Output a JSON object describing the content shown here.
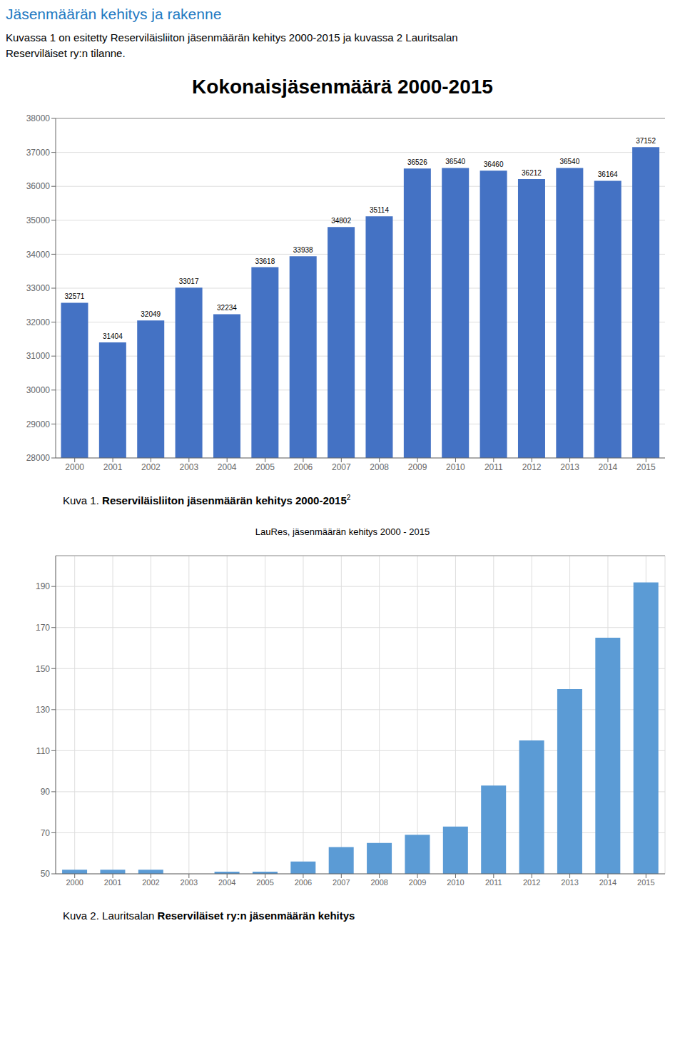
{
  "page": {
    "title": "Jäsenmäärän kehitys ja rakenne",
    "color": "#1F7AC2",
    "text": [
      "Kuvassa 1 on esitetty Reserviläisliiton jäsenmäärän kehitys 2000-2015 ja kuvassa 2 Lauritsalan",
      "Reserviläiset ry:n tilanne."
    ]
  },
  "chart_data": [
    {
      "type": "bar",
      "title": "Kokonaisjäsenmäärä 2000-2015",
      "categories": [
        "2000",
        "2001",
        "2002",
        "2003",
        "2004",
        "2005",
        "2006",
        "2007",
        "2008",
        "2009",
        "2010",
        "2011",
        "2012",
        "2013",
        "2014",
        "2015"
      ],
      "values": [
        32571,
        31404,
        32049,
        33017,
        32234,
        33618,
        33938,
        34802,
        35114,
        36526,
        36540,
        36460,
        36212,
        36540,
        36164,
        37152
      ],
      "color": "#4472C4",
      "ylim": [
        28000,
        38000
      ],
      "yticks": [
        28000,
        29000,
        30000,
        31000,
        32000,
        33000,
        34000,
        35000,
        36000,
        37000,
        38000
      ],
      "grid": "y",
      "data_labels": true,
      "annotations": [
        "Kuva 1. ",
        "Reserviläisliiton jäsenmäärän kehitys 2000-2015",
        "2"
      ]
    },
    {
      "type": "bar",
      "title": "LauRes, jäsenmäärän kehitys 2000 - 2015",
      "categories": [
        "2000",
        "2001",
        "2002",
        "2003",
        "2004",
        "2005",
        "2006",
        "2007",
        "2008",
        "2009",
        "2010",
        "2011",
        "2012",
        "2013",
        "2014",
        "2015"
      ],
      "values": [
        52,
        52,
        52,
        50,
        51,
        51,
        56,
        63,
        65,
        69,
        73,
        93,
        115,
        140,
        165,
        192
      ],
      "color": "#5B9BD5",
      "ylim": [
        50,
        205
      ],
      "yticks": [
        50,
        70,
        90,
        110,
        130,
        150,
        170,
        190
      ],
      "grid": true,
      "annotations": [
        "Kuva 2. Lauritsalan ",
        "Reserviläiset ry:n jäsenmäärän kehitys"
      ]
    }
  ]
}
